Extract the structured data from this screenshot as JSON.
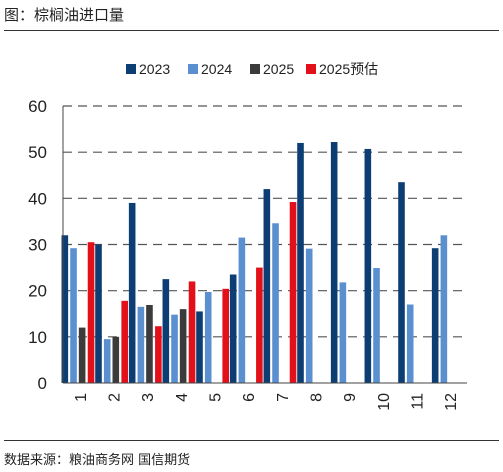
{
  "header": {
    "title": "图：棕榈油进口量"
  },
  "footer": {
    "source": "数据来源：粮油商务网  国信期货"
  },
  "colors": {
    "2023": "#0d3e73",
    "2024": "#5a8fd0",
    "2025": "#3b3b3b",
    "2025预估": "#e3101a"
  },
  "chart_data": {
    "type": "bar",
    "title": "",
    "xlabel": "",
    "ylabel": "",
    "ylim": [
      0,
      60
    ],
    "yticks": [
      0,
      10,
      20,
      30,
      40,
      50,
      60
    ],
    "grid": "horizontal-dashed",
    "legend_position": "top",
    "categories": [
      "1",
      "2",
      "3",
      "4",
      "5",
      "6",
      "7",
      "8",
      "9",
      "10",
      "11",
      "12"
    ],
    "series": [
      {
        "name": "2023",
        "values": [
          32,
          30,
          39,
          22.5,
          15.5,
          23.5,
          42,
          52,
          52.2,
          50.7,
          43.5,
          29.2
        ]
      },
      {
        "name": "2024",
        "values": [
          29.2,
          9.5,
          16.5,
          14.8,
          19.7,
          31.5,
          34.6,
          29.1,
          21.8,
          24.9,
          17,
          32
        ]
      },
      {
        "name": "2025",
        "values": [
          12,
          10,
          16.9,
          16,
          null,
          null,
          null,
          null,
          null,
          null,
          null,
          null
        ]
      },
      {
        "name": "2025预估",
        "values": [
          30.5,
          17.8,
          12.3,
          22,
          20.4,
          25,
          39.2,
          null,
          null,
          null,
          null,
          null
        ]
      }
    ]
  }
}
